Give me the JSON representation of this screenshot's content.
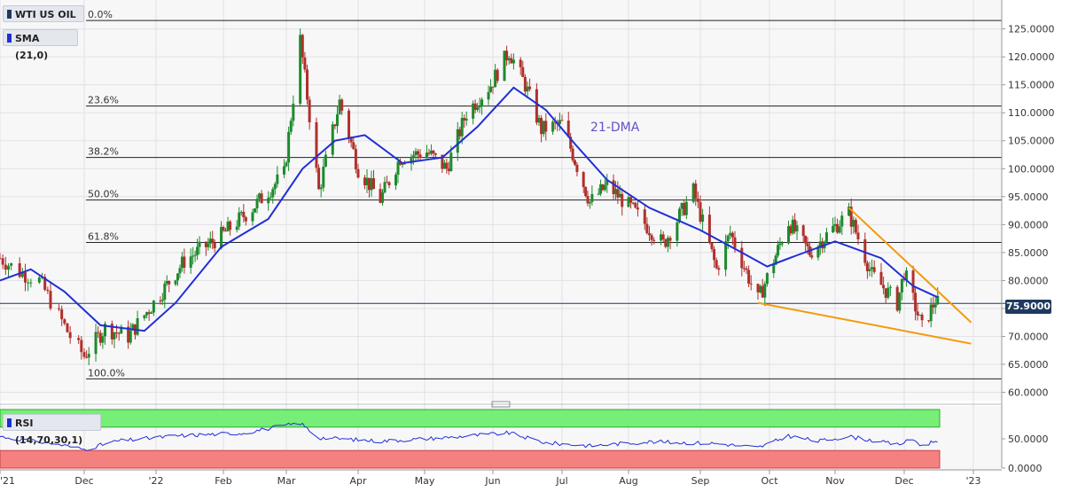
{
  "instrument": {
    "name": "WTI US OIL",
    "indicator": "SMA (21,0)",
    "rsi_label": "RSI (14,70,30,1)"
  },
  "current_price": "75.9000",
  "annotation": "21-DMA",
  "colors": {
    "up": "#1d8a2c",
    "down": "#b0302b",
    "sma": "#1f2fd6",
    "trend": "#f39a0b",
    "rsi_line": "#1f2fd6",
    "overbought_zone": "#77ee77",
    "oversold_zone": "#f48080"
  },
  "chart_data": [
    {
      "type": "candlestick",
      "title": "WTI US OIL",
      "ylim": [
        58.5,
        127
      ],
      "y_ticks": [
        "125.0000",
        "120.0000",
        "115.0000",
        "110.0000",
        "105.0000",
        "100.0000",
        "95.0000",
        "90.0000",
        "85.0000",
        "80.0000",
        "75.0000",
        "70.0000",
        "65.0000",
        "60.0000"
      ],
      "x_labels": [
        "'21",
        "Dec",
        "'22",
        "Feb",
        "Mar",
        "Apr",
        "May",
        "Jun",
        "Jul",
        "Aug",
        "Sep",
        "Oct",
        "Nov",
        "Dec",
        "'23"
      ],
      "fibonacci_levels": [
        {
          "label": "0.0%",
          "price": 126.5
        },
        {
          "label": "23.6%",
          "price": 111.2
        },
        {
          "label": "38.2%",
          "price": 102.0
        },
        {
          "label": "50.0%",
          "price": 94.4
        },
        {
          "label": "61.8%",
          "price": 86.8
        },
        {
          "label": "100.0%",
          "price": 62.4
        }
      ],
      "current_price_line": 75.9,
      "close_path": [
        [
          "2021-11-01",
          84
        ],
        [
          "2021-11-08",
          81.5
        ],
        [
          "2021-11-15",
          80
        ],
        [
          "2021-11-26",
          70
        ],
        [
          "2021-12-01",
          66.5
        ],
        [
          "2021-12-10",
          71.5
        ],
        [
          "2021-12-20",
          70
        ],
        [
          "2021-12-31",
          76
        ],
        [
          "2022-01-14",
          83.5
        ],
        [
          "2022-01-31",
          88
        ],
        [
          "2022-02-14",
          93
        ],
        [
          "2022-02-28",
          99
        ],
        [
          "2022-03-07",
          123
        ],
        [
          "2022-03-15",
          96
        ],
        [
          "2022-03-24",
          112
        ],
        [
          "2022-04-01",
          100
        ],
        [
          "2022-04-11",
          94.5
        ],
        [
          "2022-04-20",
          102
        ],
        [
          "2022-05-02",
          103
        ],
        [
          "2022-05-11",
          100
        ],
        [
          "2022-05-20",
          110
        ],
        [
          "2022-05-31",
          115
        ],
        [
          "2022-06-08",
          121
        ],
        [
          "2022-06-15",
          115
        ],
        [
          "2022-06-22",
          107
        ],
        [
          "2022-07-01",
          108
        ],
        [
          "2022-07-14",
          94
        ],
        [
          "2022-07-22",
          97
        ],
        [
          "2022-08-02",
          93
        ],
        [
          "2022-08-16",
          86.5
        ],
        [
          "2022-08-29",
          96
        ],
        [
          "2022-09-08",
          82
        ],
        [
          "2022-09-14",
          88.5
        ],
        [
          "2022-09-26",
          76.5
        ],
        [
          "2022-10-10",
          90.5
        ],
        [
          "2022-10-20",
          85
        ],
        [
          "2022-11-07",
          92
        ],
        [
          "2022-11-17",
          81
        ],
        [
          "2022-11-28",
          76
        ],
        [
          "2022-12-01",
          81.5
        ],
        [
          "2022-12-09",
          71.5
        ],
        [
          "2022-12-15",
          76.5
        ],
        [
          "2022-12-16",
          75.9
        ]
      ],
      "sma_21_path": [
        [
          "2021-11-01",
          80
        ],
        [
          "2021-11-12",
          82
        ],
        [
          "2021-11-24",
          78
        ],
        [
          "2021-12-08",
          72
        ],
        [
          "2021-12-27",
          71
        ],
        [
          "2022-01-10",
          76
        ],
        [
          "2022-01-31",
          86
        ],
        [
          "2022-02-21",
          91
        ],
        [
          "2022-03-08",
          100
        ],
        [
          "2022-03-22",
          105
        ],
        [
          "2022-04-04",
          106
        ],
        [
          "2022-04-21",
          101
        ],
        [
          "2022-05-09",
          102
        ],
        [
          "2022-05-25",
          107.5
        ],
        [
          "2022-06-10",
          114.5
        ],
        [
          "2022-06-24",
          110.5
        ],
        [
          "2022-07-08",
          104
        ],
        [
          "2022-07-22",
          98
        ],
        [
          "2022-08-10",
          93
        ],
        [
          "2022-09-01",
          89
        ],
        [
          "2022-09-19",
          85
        ],
        [
          "2022-09-30",
          82.5
        ],
        [
          "2022-10-14",
          84.5
        ],
        [
          "2022-11-01",
          87
        ],
        [
          "2022-11-21",
          84
        ],
        [
          "2022-12-05",
          79
        ],
        [
          "2022-12-16",
          77
        ]
      ],
      "trendlines": [
        {
          "from": [
            "2022-11-07",
            93
          ],
          "to": [
            "2022-12-31",
            72.5
          ]
        },
        {
          "from": [
            "2022-09-26",
            76
          ],
          "to": [
            "2022-12-31",
            68.7
          ]
        }
      ]
    },
    {
      "type": "line",
      "title": "RSI (14,70,30,1)",
      "ylim": [
        0,
        100
      ],
      "y_ticks": [
        "50.0000",
        "0.0000"
      ],
      "overbought": 70,
      "oversold": 30,
      "path": [
        [
          "2021-11-01",
          54
        ],
        [
          "2021-11-20",
          42
        ],
        [
          "2021-12-01",
          32
        ],
        [
          "2021-12-15",
          46
        ],
        [
          "2022-01-10",
          55
        ],
        [
          "2022-02-10",
          60
        ],
        [
          "2022-03-07",
          77
        ],
        [
          "2022-03-15",
          52
        ],
        [
          "2022-04-11",
          46
        ],
        [
          "2022-05-10",
          52
        ],
        [
          "2022-06-08",
          60
        ],
        [
          "2022-06-24",
          43
        ],
        [
          "2022-07-14",
          38
        ],
        [
          "2022-08-10",
          45
        ],
        [
          "2022-09-08",
          42
        ],
        [
          "2022-09-26",
          35
        ],
        [
          "2022-10-10",
          55
        ],
        [
          "2022-10-24",
          46
        ],
        [
          "2022-11-07",
          54
        ],
        [
          "2022-11-28",
          40
        ],
        [
          "2022-12-05",
          49
        ],
        [
          "2022-12-09",
          38
        ],
        [
          "2022-12-16",
          48
        ]
      ]
    }
  ]
}
